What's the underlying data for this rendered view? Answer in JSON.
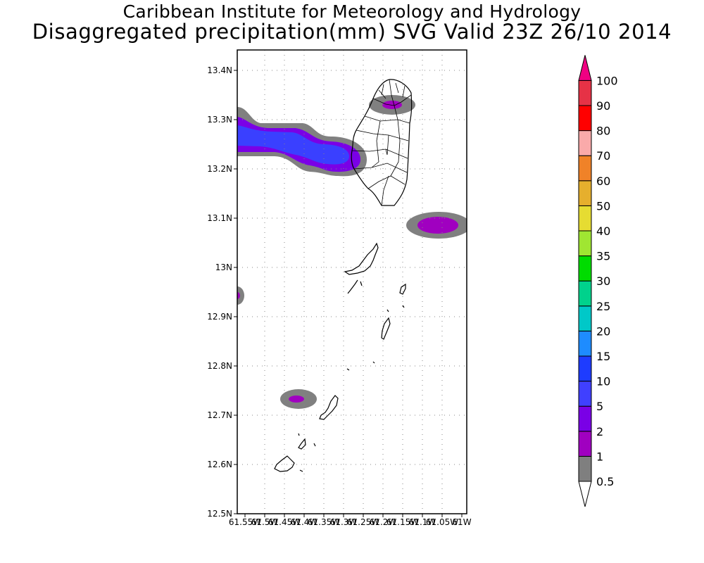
{
  "header": {
    "line1": "Caribbean Institute for Meteorology and Hydrology",
    "line2": "Disaggregated precipitation(mm) SVG Valid 23Z 26/10 2014"
  },
  "map": {
    "region": "St. Vincent and the Grenadines",
    "lon_range": [
      -61.55,
      -61.0
    ],
    "lat_range": [
      12.5,
      13.45
    ],
    "grid": "dotted",
    "lat_ticks": [
      "12.5N",
      "12.6N",
      "12.7N",
      "12.8N",
      "12.9N",
      "13N",
      "13.1N",
      "13.2N",
      "13.3N",
      "13.4N"
    ],
    "lon_ticks": [
      "61.55W",
      "61.5W",
      "61.45W",
      "61.4W",
      "61.35W",
      "61.3W",
      "61.25W",
      "61.2W",
      "61.15W",
      "61.1W",
      "61.05W",
      "61W"
    ]
  },
  "colorbar": {
    "levels": [
      "0.5",
      "1",
      "2",
      "5",
      "10",
      "15",
      "20",
      "25",
      "30",
      "35",
      "40",
      "50",
      "60",
      "70",
      "80",
      "90",
      "100"
    ],
    "colors": [
      "#7f7f7f",
      "#a000c0",
      "#7a00e6",
      "#4040ff",
      "#1e3cff",
      "#1e8cff",
      "#00c8c8",
      "#00d28c",
      "#00dc00",
      "#a0e632",
      "#e6dc32",
      "#e6af2d",
      "#f08228",
      "#faaaaa",
      "#ff0000",
      "#e63246",
      "#f00082"
    ]
  },
  "precip_areas": [
    {
      "name": "band north-west of St. Vincent",
      "value_range_mm": "0.5-10"
    },
    {
      "name": "north tip St. Vincent",
      "value_range_mm": "0.5-2"
    },
    {
      "name": "east of Bequia",
      "value_range_mm": "0.5-2"
    },
    {
      "name": "west edge near 12.95N",
      "value_range_mm": "0.5-1"
    },
    {
      "name": "west of Union Island",
      "value_range_mm": "0.5-2"
    }
  ]
}
